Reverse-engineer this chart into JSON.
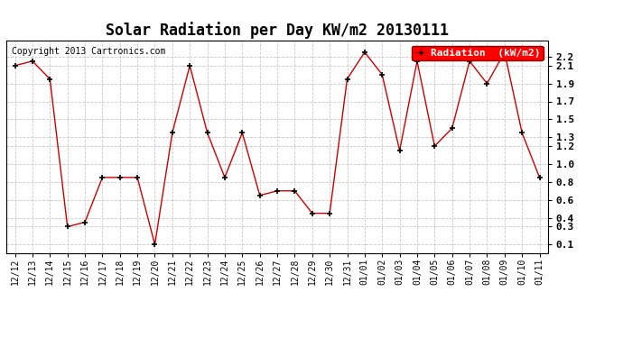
{
  "title": "Solar Radiation per Day KW/m2 20130111",
  "copyright": "Copyright 2013 Cartronics.com",
  "legend_label": "Radiation  (kW/m2)",
  "background_color": "#ffffff",
  "plot_bg_color": "#ffffff",
  "grid_color": "#c8c8c8",
  "line_color": "#cc0000",
  "marker_color": "#000000",
  "dates": [
    "12/12",
    "12/13",
    "12/14",
    "12/15",
    "12/16",
    "12/17",
    "12/18",
    "12/19",
    "12/20",
    "12/21",
    "12/22",
    "12/23",
    "12/24",
    "12/25",
    "12/26",
    "12/27",
    "12/28",
    "12/29",
    "12/30",
    "12/31",
    "01/01",
    "01/02",
    "01/03",
    "01/04",
    "01/05",
    "01/06",
    "01/07",
    "01/08",
    "01/09",
    "01/10",
    "01/11"
  ],
  "values": [
    2.1,
    2.15,
    1.95,
    0.3,
    0.35,
    0.85,
    0.85,
    0.85,
    0.1,
    1.35,
    2.1,
    1.35,
    0.85,
    1.35,
    0.65,
    0.7,
    0.7,
    0.45,
    0.45,
    1.95,
    2.25,
    2.0,
    1.15,
    2.15,
    1.2,
    1.4,
    2.15,
    1.9,
    2.25,
    1.35,
    0.85
  ],
  "yticks": [
    0.1,
    0.3,
    0.4,
    0.6,
    0.8,
    1.0,
    1.2,
    1.3,
    1.5,
    1.7,
    1.9,
    2.1,
    2.2
  ],
  "ylim": [
    0.0,
    2.38
  ],
  "title_fontsize": 12,
  "tick_fontsize": 7,
  "copyright_fontsize": 7,
  "legend_fontsize": 8
}
